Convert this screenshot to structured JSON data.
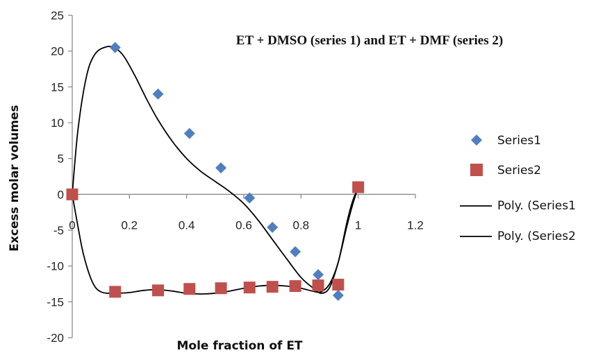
{
  "chart_data": {
    "type": "scatter",
    "title": "ET + DMSO (series 1) and ET + DMF (series 2)",
    "xlabel": "Mole fraction of ET",
    "ylabel": "Excess molar volumes",
    "xlim": [
      0,
      1.2
    ],
    "ylim": [
      -20,
      25
    ],
    "x_ticks": [
      "0",
      "0.2",
      "0.4",
      "0.6",
      "0.8",
      "1",
      "1.2"
    ],
    "y_ticks": [
      "25",
      "20",
      "15",
      "10",
      "5",
      "0",
      "-5",
      "-10",
      "-15",
      "-20"
    ],
    "grid": false,
    "legend_position": "right",
    "series": [
      {
        "name": "Series1",
        "marker": "diamond",
        "color": "#4f7fbf",
        "x": [
          0.15,
          0.3,
          0.41,
          0.52,
          0.62,
          0.7,
          0.78,
          0.86,
          0.93
        ],
        "y": [
          20.5,
          14.0,
          8.5,
          3.7,
          -0.5,
          -4.6,
          -8.0,
          -11.2,
          -14.1
        ]
      },
      {
        "name": "Series2",
        "marker": "square",
        "color": "#c0504d",
        "x": [
          0.0,
          0.15,
          0.3,
          0.41,
          0.52,
          0.62,
          0.7,
          0.78,
          0.86,
          0.93,
          1.0
        ],
        "y": [
          0.0,
          -13.6,
          -13.4,
          -13.2,
          -13.1,
          -13.0,
          -12.9,
          -12.8,
          -12.7,
          -12.6,
          1.0
        ]
      },
      {
        "name": "Poly. (Series1",
        "type": "trendline",
        "color": "#000000",
        "x": [
          0.0,
          0.02,
          0.05,
          0.08,
          0.12,
          0.15,
          0.18,
          0.22,
          0.26,
          0.3,
          0.35,
          0.4,
          0.45,
          0.5,
          0.55,
          0.6,
          0.65,
          0.7,
          0.75,
          0.8,
          0.84,
          0.87,
          0.9,
          0.93,
          0.96,
          0.98,
          1.0
        ],
        "y": [
          0.0,
          9.0,
          16.5,
          19.6,
          20.6,
          20.4,
          19.3,
          16.5,
          13.3,
          10.4,
          7.4,
          5.0,
          3.2,
          1.8,
          0.4,
          -1.3,
          -3.6,
          -6.3,
          -9.0,
          -11.6,
          -13.0,
          -13.8,
          -13.0,
          -9.5,
          -4.5,
          -1.5,
          1.0
        ]
      },
      {
        "name": "Poly. (Series2",
        "type": "trendline",
        "color": "#000000",
        "x": [
          0.0,
          0.02,
          0.04,
          0.07,
          0.1,
          0.15,
          0.2,
          0.25,
          0.3,
          0.35,
          0.4,
          0.45,
          0.5,
          0.55,
          0.6,
          0.65,
          0.7,
          0.75,
          0.8,
          0.84,
          0.87,
          0.9,
          0.93,
          0.96,
          0.98,
          1.0
        ],
        "y": [
          0.0,
          -4.5,
          -8.5,
          -12.2,
          -13.6,
          -13.8,
          -13.7,
          -13.4,
          -13.3,
          -13.5,
          -13.8,
          -13.9,
          -13.8,
          -13.5,
          -13.1,
          -12.8,
          -12.7,
          -12.8,
          -13.1,
          -13.5,
          -13.6,
          -12.5,
          -9.5,
          -4.0,
          -1.0,
          1.0
        ]
      }
    ]
  }
}
